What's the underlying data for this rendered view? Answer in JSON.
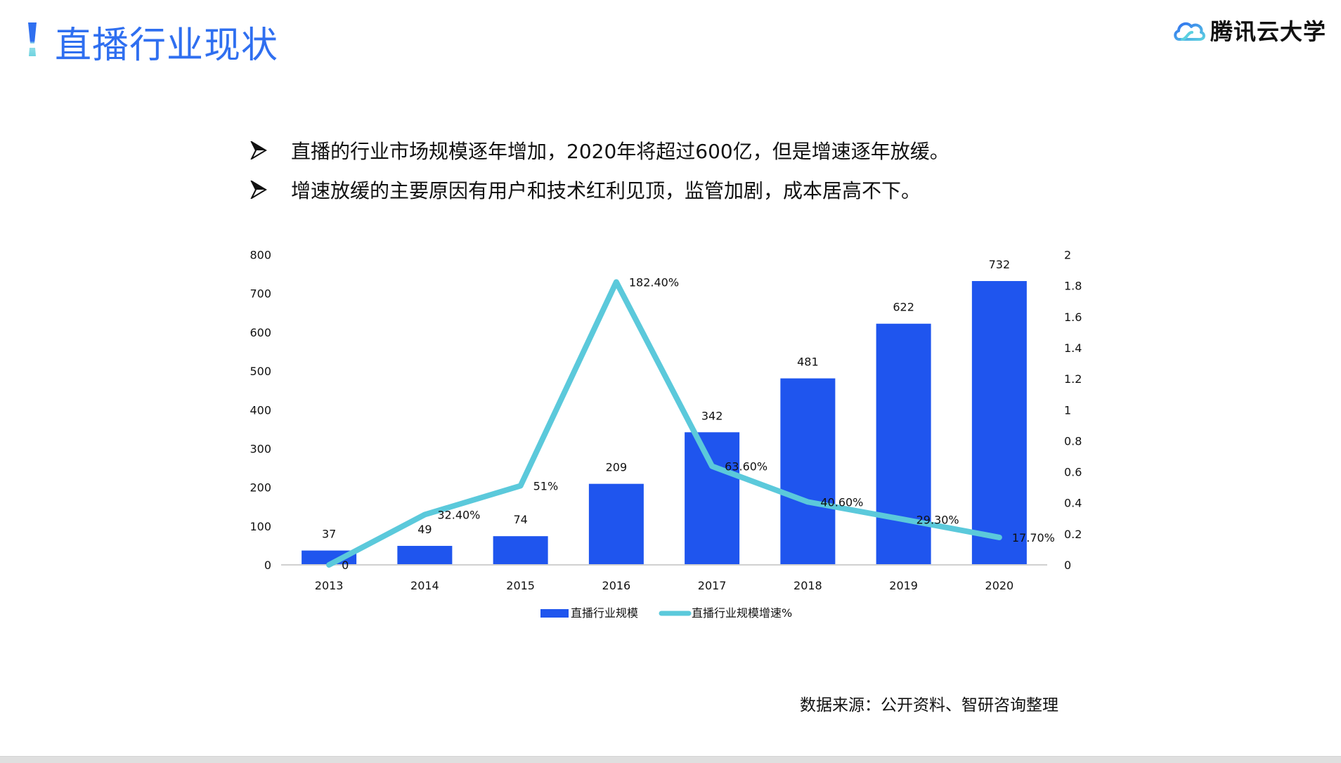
{
  "header": {
    "title": "直播行业现状",
    "brand": "腾讯云大学",
    "brand_icon": "cloud-logo-icon"
  },
  "bullets": [
    {
      "icon": "arrowhead-bullet-icon",
      "text": "直播的行业市场规模逐年增加，2020年将超过600亿，但是增速逐年放缓。"
    },
    {
      "icon": "arrowhead-bullet-icon",
      "text": "增速放缓的主要原因有用户和技术红利见顶，监管加剧，成本居高不下。"
    }
  ],
  "source_note": "数据来源：公开资料、智研咨询整理",
  "colors": {
    "title": "#2f6ff0",
    "bar": "#1f55ee",
    "line": "#5bc9db",
    "axis": "#d0d0d0",
    "text": "#111111"
  },
  "chart_data": {
    "type": "bar+line",
    "title": "",
    "categories": [
      "2013",
      "2014",
      "2015",
      "2016",
      "2017",
      "2018",
      "2019",
      "2020"
    ],
    "series": [
      {
        "name": "直播行业规模",
        "type": "bar",
        "axis": "left",
        "values": [
          37,
          49,
          74,
          209,
          342,
          481,
          622,
          732
        ],
        "labels": [
          "37",
          "49",
          "74",
          "209",
          "342",
          "481",
          "622",
          "732"
        ]
      },
      {
        "name": "直播行业规模增速%",
        "type": "line",
        "axis": "right",
        "values": [
          0,
          0.324,
          0.51,
          1.824,
          0.636,
          0.406,
          0.293,
          0.177
        ],
        "labels": [
          "0",
          "32.40%",
          "51%",
          "182.40%",
          "63.60%",
          "40.60%",
          "29.30%",
          "17.70%"
        ]
      }
    ],
    "left_axis": {
      "ylim": [
        0,
        800
      ],
      "ticks": [
        "0",
        "100",
        "200",
        "300",
        "400",
        "500",
        "600",
        "700",
        "800"
      ]
    },
    "right_axis": {
      "ylim": [
        0,
        2
      ],
      "ticks": [
        "0",
        "0.2",
        "0.4",
        "0.6",
        "0.8",
        "1",
        "1.2",
        "1.4",
        "1.6",
        "1.8",
        "2"
      ]
    },
    "grid": false,
    "legend": {
      "position": "bottom",
      "entries": [
        "直播行业规模",
        "直播行业规模增速%"
      ]
    }
  }
}
